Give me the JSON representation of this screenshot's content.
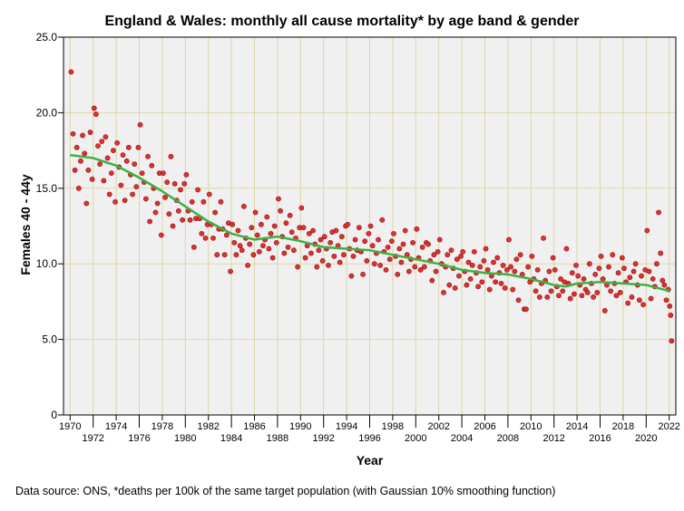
{
  "chart_data": {
    "type": "scatter",
    "title": "England & Wales: monthly all cause mortality* by age band & gender",
    "xlabel": "Year",
    "ylabel": "Females 40 - 44y",
    "source": "Data source: ONS, *deaths per 100k of the same target population (with Gaussian 10% smoothing function)",
    "xlim": [
      1969.5,
      2022.6
    ],
    "ylim": [
      0,
      25
    ],
    "grid": true,
    "yticks": [
      "0",
      "5.0",
      "10.0",
      "15.0",
      "20.0",
      "25.0"
    ],
    "xticks_top": [
      "1970",
      "1974",
      "1978",
      "1982",
      "1986",
      "1990",
      "1994",
      "1998",
      "2002",
      "2006",
      "2010",
      "2014",
      "2018",
      "2022"
    ],
    "xticks_bottom": [
      "1972",
      "1976",
      "1980",
      "1984",
      "1988",
      "1992",
      "1996",
      "2000",
      "2004",
      "2008",
      "2012",
      "2016",
      "2020"
    ],
    "point_color": "#e03030",
    "line_color": "#3cb043",
    "points_by_year": {
      "1970": [
        22.7,
        18.6,
        16.2,
        17.7,
        15.0,
        16.8
      ],
      "1971": [
        18.5,
        17.3,
        14.0,
        16.2,
        18.7,
        15.6
      ],
      "1972": [
        20.3,
        19.9,
        17.8,
        16.6,
        18.1,
        15.5
      ],
      "1973": [
        18.4,
        17.0,
        14.6,
        16.0,
        17.5,
        14.1
      ],
      "1974": [
        18.0,
        16.4,
        15.2,
        17.2,
        14.2,
        16.8
      ],
      "1975": [
        17.7,
        15.9,
        14.6,
        16.6,
        15.1,
        17.7
      ],
      "1976": [
        19.2,
        16.0,
        15.4,
        14.3,
        17.1,
        12.8
      ],
      "1977": [
        16.5,
        15.0,
        13.4,
        14.0,
        16.0,
        11.9
      ],
      "1978": [
        16.0,
        14.4,
        15.4,
        13.3,
        17.1,
        12.5
      ],
      "1979": [
        15.3,
        14.2,
        13.5,
        14.9,
        12.9,
        15.3
      ],
      "1980": [
        15.9,
        13.5,
        12.9,
        14.1,
        11.1,
        13.0
      ],
      "1981": [
        14.9,
        13.0,
        12.0,
        14.1,
        11.7,
        12.6
      ],
      "1982": [
        14.6,
        12.6,
        11.7,
        13.4,
        10.6,
        12.3
      ],
      "1983": [
        14.1,
        12.3,
        10.6,
        11.9,
        12.7,
        9.5
      ],
      "1984": [
        12.6,
        11.4,
        10.6,
        12.2,
        11.2,
        10.9
      ],
      "1985": [
        13.8,
        11.7,
        9.9,
        11.3,
        12.4,
        10.6
      ],
      "1986": [
        13.4,
        11.9,
        10.8,
        12.6,
        11.2,
        11.6
      ],
      "1987": [
        13.1,
        11.0,
        12.0,
        10.4,
        12.5,
        11.4
      ],
      "1988": [
        14.3,
        13.5,
        11.8,
        10.7,
        12.7,
        11.1
      ],
      "1989": [
        13.2,
        12.1,
        10.9,
        11.7,
        9.8,
        12.4
      ],
      "1990": [
        13.7,
        12.4,
        10.4,
        11.2,
        12.0,
        10.7
      ],
      "1991": [
        12.2,
        11.3,
        9.8,
        10.9,
        11.6,
        10.2
      ],
      "1992": [
        11.8,
        11.0,
        9.9,
        11.4,
        12.1,
        10.5
      ],
      "1993": [
        12.2,
        11.2,
        10.1,
        11.8,
        10.6,
        12.5
      ],
      "1994": [
        12.6,
        11.0,
        9.2,
        10.5,
        11.6,
        10.9
      ],
      "1995": [
        12.4,
        10.8,
        9.3,
        11.5,
        10.2,
        12.0
      ],
      "1996": [
        12.5,
        11.2,
        10.0,
        10.7,
        11.6,
        9.9
      ],
      "1997": [
        12.9,
        10.8,
        9.6,
        11.1,
        10.3,
        11.5
      ],
      "1998": [
        12.0,
        10.5,
        9.3,
        11.0,
        10.1,
        11.3
      ],
      "1999": [
        12.2,
        10.6,
        9.5,
        10.3,
        11.4,
        9.8
      ],
      "2000": [
        12.3,
        10.4,
        9.6,
        11.1,
        9.8,
        11.4
      ],
      "2001": [
        11.3,
        10.2,
        8.9,
        10.6,
        9.5,
        10.8
      ],
      "2002": [
        11.6,
        10.0,
        8.1,
        9.8,
        10.6,
        8.6
      ],
      "2003": [
        10.9,
        9.7,
        8.4,
        10.3,
        9.2,
        10.5
      ],
      "2004": [
        10.8,
        9.5,
        8.6,
        10.1,
        9.0,
        9.9
      ],
      "2005": [
        10.8,
        9.4,
        8.5,
        9.8,
        8.8,
        10.2
      ],
      "2006": [
        11.0,
        9.6,
        8.3,
        9.2,
        10.1,
        8.8
      ],
      "2007": [
        10.4,
        9.4,
        8.7,
        9.9,
        8.4,
        9.6
      ],
      "2008": [
        11.6,
        9.8,
        8.3,
        9.5,
        10.3,
        7.6
      ],
      "2009": [
        10.6,
        9.3,
        7.0,
        7.0,
        9.8,
        8.8
      ],
      "2010": [
        10.5,
        9.0,
        8.2,
        9.6,
        7.8,
        8.7
      ],
      "2011": [
        11.7,
        8.9,
        7.8,
        9.5,
        8.2,
        10.4
      ],
      "2012": [
        9.6,
        8.5,
        7.9,
        9.0,
        8.2,
        8.8
      ],
      "2013": [
        11.0,
        8.7,
        7.7,
        9.4,
        8.0,
        9.9
      ],
      "2014": [
        9.2,
        8.6,
        7.9,
        9.0,
        8.3,
        8.1
      ],
      "2015": [
        10.0,
        8.7,
        7.8,
        9.3,
        8.1,
        9.7
      ],
      "2016": [
        10.5,
        9.0,
        6.9,
        8.6,
        9.8,
        8.2
      ],
      "2017": [
        10.6,
        8.7,
        7.9,
        9.4,
        8.1,
        10.4
      ],
      "2018": [
        9.7,
        8.8,
        7.4,
        9.1,
        7.8,
        9.5
      ],
      "2019": [
        10.0,
        8.6,
        7.6,
        9.2,
        7.3,
        9.6
      ],
      "2020": [
        12.2,
        9.5,
        7.7,
        9.0,
        8.5,
        10.0
      ],
      "2021": [
        13.4,
        10.7,
        8.9,
        8.6,
        7.6,
        8.3
      ],
      "2022": [
        7.2,
        6.6,
        4.9
      ]
    },
    "smooth": {
      "x": [
        1970,
        1972,
        1974,
        1976,
        1978,
        1980,
        1982,
        1984,
        1986,
        1988,
        1990,
        1992,
        1994,
        1996,
        1998,
        2000,
        2002,
        2004,
        2006,
        2008,
        2010,
        2012,
        2013,
        2014,
        2016,
        2018,
        2020,
        2022
      ],
      "y": [
        17.2,
        17.0,
        16.5,
        15.7,
        14.8,
        13.8,
        12.8,
        12.0,
        11.6,
        11.8,
        11.5,
        11.1,
        11.0,
        10.9,
        10.6,
        10.3,
        10.0,
        9.6,
        9.4,
        9.3,
        9.0,
        8.6,
        8.5,
        8.7,
        8.8,
        8.7,
        8.6,
        8.2
      ]
    }
  }
}
